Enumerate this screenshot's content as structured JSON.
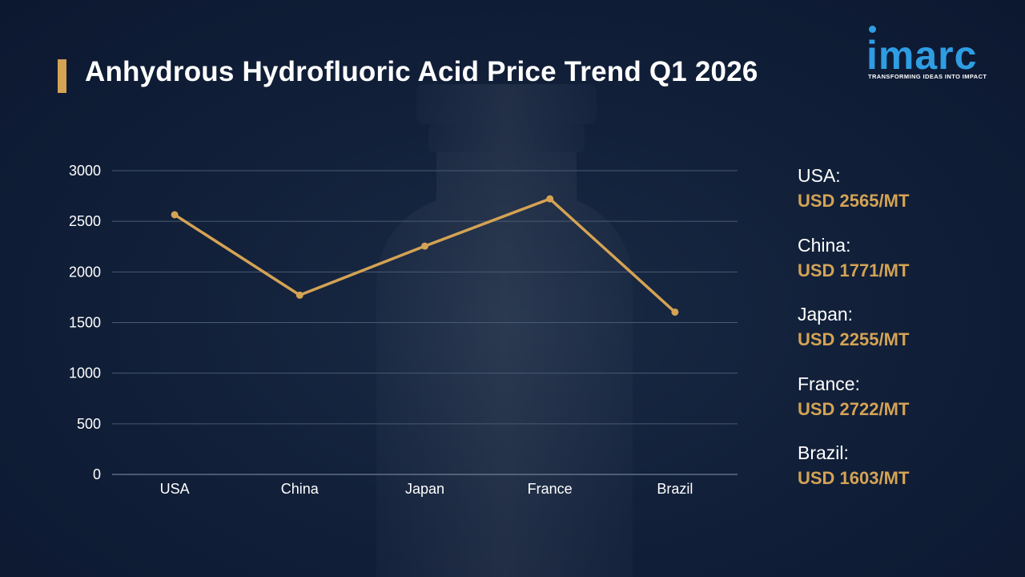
{
  "title": "Anhydrous Hydrofluoric Acid Price Trend Q1 2026",
  "logo": {
    "name": "imarc",
    "tagline": "TRANSFORMING IDEAS INTO IMPACT"
  },
  "colors": {
    "accent": "#d4a354",
    "brand": "#2f9de3",
    "background": "#12203a",
    "grid": "#4a5a73",
    "text": "#ffffff"
  },
  "legend": [
    {
      "country": "USA:",
      "price": "USD 2565/MT"
    },
    {
      "country": "China:",
      "price": "USD 1771/MT"
    },
    {
      "country": "Japan:",
      "price": "USD 2255/MT"
    },
    {
      "country": "France:",
      "price": "USD 2722/MT"
    },
    {
      "country": "Brazil:",
      "price": "USD 1603/MT"
    }
  ],
  "chart_data": {
    "type": "line",
    "title": "",
    "xlabel": "",
    "ylabel": "",
    "categories": [
      "USA",
      "China",
      "Japan",
      "France",
      "Brazil"
    ],
    "series": [
      {
        "values": [
          2565,
          1771,
          2255,
          2722,
          1603
        ],
        "color": "#d4a354"
      }
    ],
    "ylim": [
      0,
      3000
    ],
    "yticks": [
      0,
      500,
      1000,
      1500,
      2000,
      2500,
      3000
    ],
    "grid": true,
    "legend": "none"
  }
}
